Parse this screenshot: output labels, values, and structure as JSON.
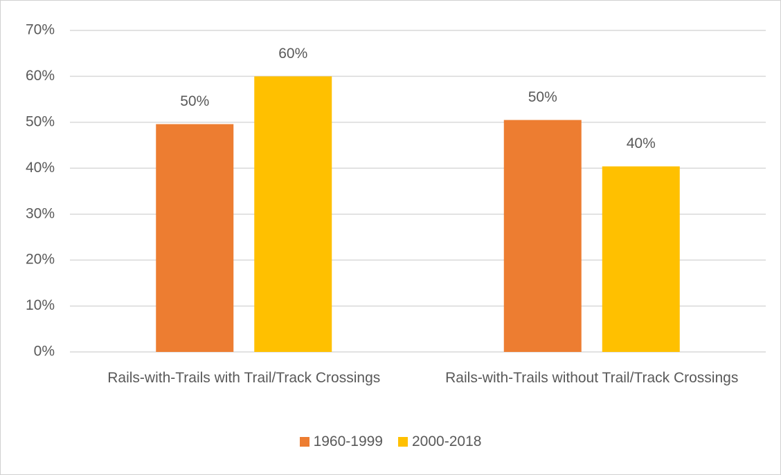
{
  "chart_data": {
    "type": "bar",
    "categories": [
      "Rails-with-Trails with Trail/Track Crossings",
      "Rails-with-Trails without Trail/Track Crossings"
    ],
    "series": [
      {
        "name": "1960-1999",
        "color": "#ed7d31",
        "values": [
          49.6,
          50.5
        ],
        "value_labels": [
          "50%",
          "50%"
        ]
      },
      {
        "name": "2000-2018",
        "color": "#ffc000",
        "values": [
          60,
          40.4
        ],
        "value_labels": [
          "60%",
          "40%"
        ]
      }
    ],
    "ylim": [
      0,
      70
    ],
    "yticks": [
      {
        "value": 0,
        "label": "0%"
      },
      {
        "value": 10,
        "label": "10%"
      },
      {
        "value": 20,
        "label": "20%"
      },
      {
        "value": 30,
        "label": "30%"
      },
      {
        "value": 40,
        "label": "40%"
      },
      {
        "value": 50,
        "label": "50%"
      },
      {
        "value": 60,
        "label": "60%"
      },
      {
        "value": 70,
        "label": "70%"
      }
    ],
    "grid": true,
    "legend": "bottom"
  }
}
